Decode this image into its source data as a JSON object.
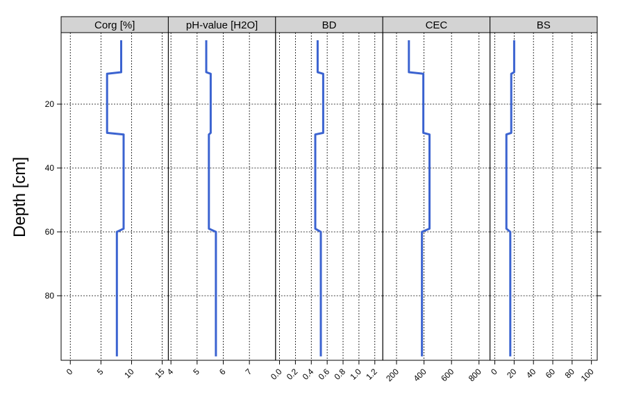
{
  "chart_data": {
    "type": "line",
    "ylabel": "Depth [cm]",
    "ylim": [
      100,
      0
    ],
    "y_ticks": [
      "20",
      "40",
      "60",
      "80"
    ],
    "y_tick_values": [
      20,
      40,
      60,
      80
    ],
    "grid": true,
    "line_color": "#3b63d0",
    "panel_header_color": "#d3d3d3",
    "depths": [
      0,
      10,
      10.5,
      29,
      29.5,
      59,
      60,
      99
    ],
    "panels": [
      {
        "name": "Corg [%]",
        "xlim": [
          -1.5,
          16
        ],
        "ticks": [
          0,
          5,
          10,
          15
        ],
        "tick_labels": [
          "0",
          "5",
          "10",
          "15"
        ],
        "values": [
          8.3,
          8.3,
          6.0,
          6.0,
          8.7,
          8.7,
          7.6,
          7.6
        ]
      },
      {
        "name": "pH-value [H2O]",
        "xlim": [
          3.9,
          8.0
        ],
        "ticks": [
          4,
          5,
          6,
          7
        ],
        "tick_labels": [
          "4",
          "5",
          "6",
          "7"
        ],
        "values": [
          5.35,
          5.35,
          5.52,
          5.52,
          5.45,
          5.45,
          5.72,
          5.72
        ]
      },
      {
        "name": "BD",
        "xlim": [
          -0.05,
          1.3
        ],
        "ticks": [
          0.0,
          0.2,
          0.4,
          0.6,
          0.8,
          1.0,
          1.2
        ],
        "tick_labels": [
          "0.0",
          "0.2",
          "0.4",
          "0.6",
          "0.8",
          "1.0",
          "1.2"
        ],
        "values": [
          0.48,
          0.48,
          0.55,
          0.55,
          0.45,
          0.45,
          0.52,
          0.52
        ]
      },
      {
        "name": "CEC",
        "xlim": [
          100,
          880
        ],
        "ticks": [
          200,
          400,
          600,
          800
        ],
        "tick_labels": [
          "200",
          "400",
          "600",
          "800"
        ],
        "values": [
          290,
          290,
          395,
          395,
          440,
          440,
          385,
          385
        ]
      },
      {
        "name": "BS",
        "xlim": [
          -5,
          106
        ],
        "ticks": [
          0,
          20,
          40,
          60,
          80,
          100
        ],
        "tick_labels": [
          "0",
          "20",
          "40",
          "60",
          "80",
          "100"
        ],
        "values": [
          20,
          20,
          17,
          17,
          12,
          12,
          16,
          16
        ]
      }
    ]
  }
}
